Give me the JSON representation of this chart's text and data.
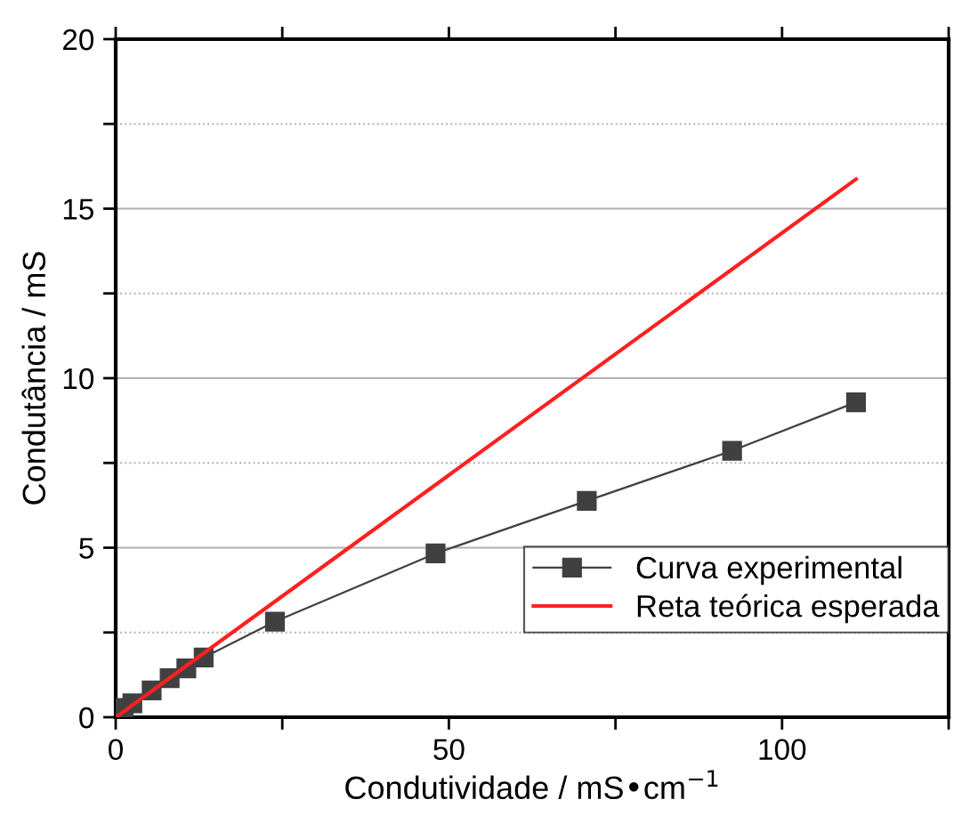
{
  "chart_data": {
    "type": "line",
    "xlabel": "Condutividade / mS•cm$^{−1}$",
    "ylabel": "Condutância / mS",
    "series": [
      {
        "name": "Curva experimental",
        "color": "#404040",
        "marker": "square",
        "x": [
          0,
          1.2,
          2.5,
          5.4,
          8.1,
          10.6,
          13.2,
          23.9,
          48.0,
          70.7,
          92.5,
          111.1
        ],
        "values": [
          0.04,
          0.27,
          0.41,
          0.79,
          1.15,
          1.44,
          1.76,
          2.82,
          4.83,
          6.38,
          7.86,
          9.29
        ]
      },
      {
        "name": "Reta teórica esperada",
        "color": "#ff2020",
        "marker": "none",
        "x": [
          0,
          111.1
        ],
        "values": [
          0,
          15.87
        ]
      }
    ],
    "xlim": [
      0,
      125
    ],
    "ylim": [
      0,
      20
    ],
    "xticks": [
      0,
      {
        "value": 25,
        "label": null
      },
      50,
      {
        "value": 75,
        "label": null
      },
      100,
      {
        "value": 125,
        "label": null
      }
    ],
    "yticks": [
      0,
      {
        "value": 2.5,
        "label": null
      },
      5,
      {
        "value": 7.5,
        "label": null
      },
      10,
      {
        "value": 12.5,
        "label": null
      },
      15,
      {
        "value": 17.5,
        "label": null
      },
      20
    ],
    "grid": "y",
    "legend": "bottom right"
  }
}
